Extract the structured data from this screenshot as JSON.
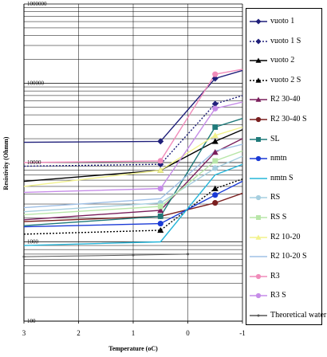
{
  "chart_data": {
    "type": "line",
    "xlabel": "Temperature (oC)",
    "ylabel": "Resistivity (Ohmm)",
    "x_ticks": [
      3,
      2,
      1,
      0,
      -1
    ],
    "xlim": [
      3,
      -1
    ],
    "y_ticks": [
      "100",
      "1000",
      "10000",
      "100000",
      "1000000"
    ],
    "ylim": [
      100,
      1000000
    ],
    "y_scale": "log",
    "grid": true,
    "legend_position": "right",
    "series": [
      {
        "name": "vuoto 1",
        "color": "#1f1f7a",
        "dash": false,
        "marker": "diamond",
        "x": [
          3,
          0.5,
          -0.5,
          -1
        ],
        "y": [
          18000,
          18500,
          115000,
          145000
        ]
      },
      {
        "name": "vuoto 1 S",
        "color": "#1f1f7a",
        "dash": true,
        "marker": "diamond",
        "x": [
          3,
          0.5,
          -0.5,
          -1
        ],
        "y": [
          9000,
          9500,
          55000,
          70000
        ]
      },
      {
        "name": "vuoto 2",
        "color": "#000000",
        "dash": false,
        "marker": "triangle",
        "x": [
          3,
          0.5,
          -0.5,
          -1
        ],
        "y": [
          5800,
          8000,
          18500,
          26000
        ]
      },
      {
        "name": "vuoto 2 S",
        "color": "#000000",
        "dash": true,
        "marker": "triangle",
        "x": [
          3,
          0.5,
          -0.5,
          -1
        ],
        "y": [
          1250,
          1400,
          4700,
          6200
        ]
      },
      {
        "name": "R2 30-40",
        "color": "#7a1f5c",
        "dash": false,
        "marker": "triangle",
        "x": [
          3,
          0.5,
          -0.5,
          -1
        ],
        "y": [
          1900,
          2500,
          13500,
          20000
        ]
      },
      {
        "name": "R2 30-40 S",
        "color": "#7a1f1f",
        "dash": false,
        "marker": "circle",
        "x": [
          3,
          0.5,
          -0.5,
          -1
        ],
        "y": [
          1800,
          2100,
          3100,
          4100
        ]
      },
      {
        "name": "SL",
        "color": "#1f7a7a",
        "dash": false,
        "marker": "square",
        "x": [
          3,
          0.5,
          -0.5,
          -1
        ],
        "y": [
          1600,
          2100,
          28000,
          36000
        ]
      },
      {
        "name": "nmtn",
        "color": "#1a3ad6",
        "dash": false,
        "marker": "circle",
        "x": [
          3,
          0.5,
          -0.5,
          -1
        ],
        "y": [
          1550,
          1700,
          3900,
          5800
        ]
      },
      {
        "name": "nmtn S",
        "color": "#25b5d9",
        "dash": false,
        "marker": "none",
        "x": [
          3,
          0.5,
          -0.5,
          -1
        ],
        "y": [
          900,
          1000,
          7000,
          9500
        ]
      },
      {
        "name": "RS",
        "color": "#a6cfe0",
        "dash": false,
        "marker": "circle",
        "x": [
          3,
          0.5,
          -0.5,
          -1
        ],
        "y": [
          2400,
          3100,
          8500,
          12000
        ]
      },
      {
        "name": "RS S",
        "color": "#b8e6a8",
        "dash": false,
        "marker": "square",
        "x": [
          3,
          0.5,
          -0.5,
          -1
        ],
        "y": [
          2200,
          2800,
          10500,
          14000
        ]
      },
      {
        "name": "R2 10-20",
        "color": "#f2f28c",
        "dash": false,
        "marker": "triangle",
        "x": [
          3,
          0.5,
          -0.5,
          -1
        ],
        "y": [
          5000,
          8000,
          22000,
          28000
        ]
      },
      {
        "name": "R2 10-20 S",
        "color": "#9fc0e6",
        "dash": false,
        "marker": "none",
        "x": [
          3,
          0.5,
          -0.5,
          -1
        ],
        "y": [
          2700,
          3500,
          14000,
          17000
        ]
      },
      {
        "name": "R3",
        "color": "#f08cba",
        "dash": false,
        "marker": "circle",
        "x": [
          3,
          0.5,
          -0.5,
          -1
        ],
        "y": [
          10000,
          10500,
          130000,
          150000
        ]
      },
      {
        "name": "R3 S",
        "color": "#c68ce8",
        "dash": false,
        "marker": "circle",
        "x": [
          3,
          0.5,
          -0.5,
          -1
        ],
        "y": [
          4200,
          4700,
          48000,
          58000
        ]
      },
      {
        "name": "Theoretical water",
        "color": "#555555",
        "dash": false,
        "marker": "dot",
        "x": [
          3,
          1,
          0
        ],
        "y": [
          650,
          680,
          700
        ]
      }
    ]
  }
}
